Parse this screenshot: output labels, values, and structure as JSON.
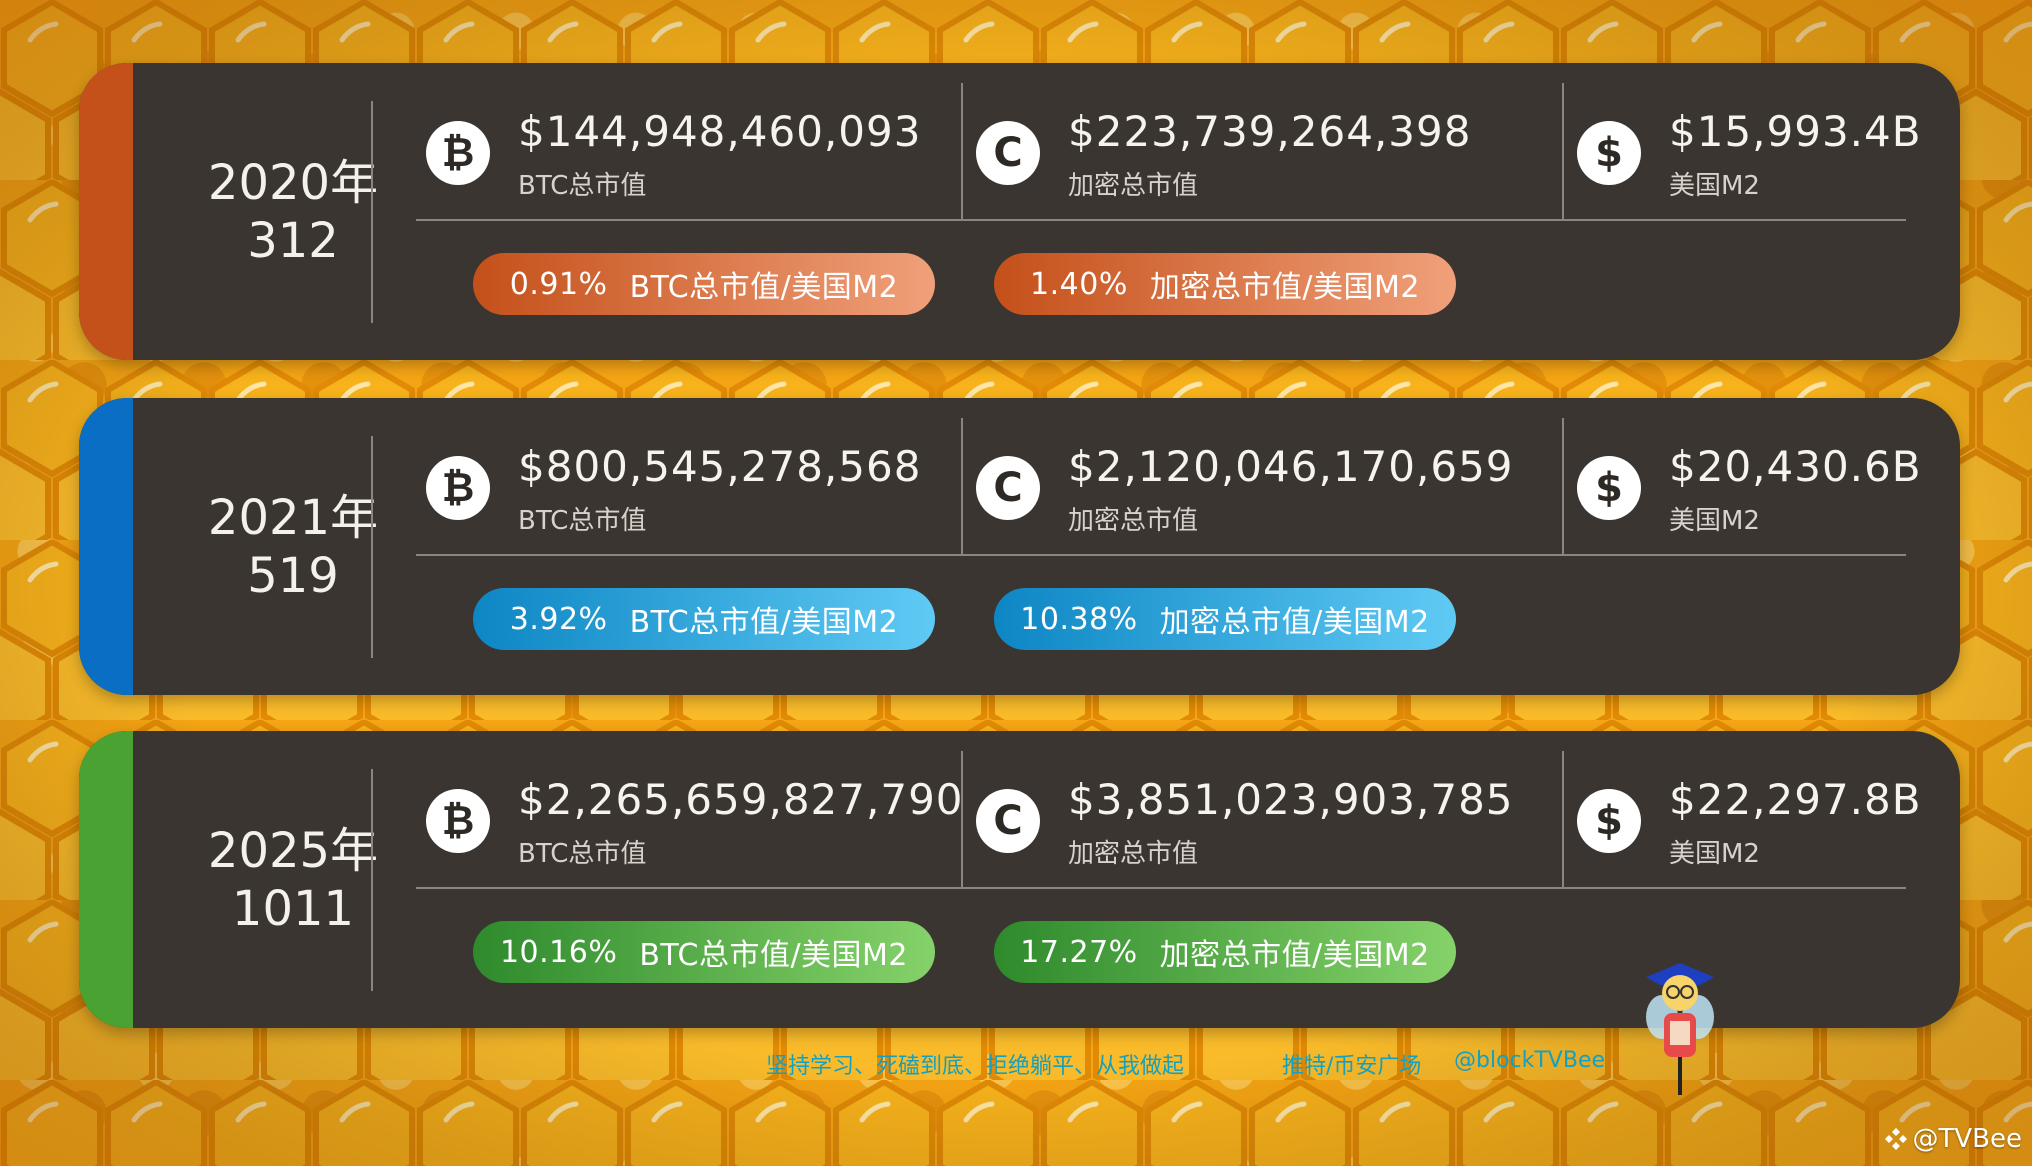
{
  "cards": [
    {
      "year": "2020年",
      "date": "312",
      "accent": "#c4501a",
      "btc_value": "$144,948,460,093",
      "btc_label": "BTC总市值",
      "crypto_value": "$223,739,264,398",
      "crypto_label": "加密总市值",
      "m2_value": "$15,993.4B",
      "m2_label": "美国M2",
      "btc_ratio": "0.91%",
      "btc_ratio_label": "BTC总市值/美国M2",
      "crypto_ratio": "1.40%",
      "crypto_ratio_label": "加密总市值/美国M2",
      "pill_from": "#c4501a",
      "pill_to": "#f0a07a"
    },
    {
      "year": "2021年",
      "date": "519",
      "accent": "#0a6fc4",
      "btc_value": "$800,545,278,568",
      "btc_label": "BTC总市值",
      "crypto_value": "$2,120,046,170,659",
      "crypto_label": "加密总市值",
      "m2_value": "$20,430.6B",
      "m2_label": "美国M2",
      "btc_ratio": "3.92%",
      "btc_ratio_label": "BTC总市值/美国M2",
      "crypto_ratio": "10.38%",
      "crypto_ratio_label": "加密总市值/美国M2",
      "pill_from": "#0d86c4",
      "pill_to": "#5fcaf4"
    },
    {
      "year": "2025年",
      "date": "1011",
      "accent": "#4aa232",
      "btc_value": "$2,265,659,827,790",
      "btc_label": "BTC总市值",
      "crypto_value": "$3,851,023,903,785",
      "crypto_label": "加密总市值",
      "m2_value": "$22,297.8B",
      "m2_label": "美国M2",
      "btc_ratio": "10.16%",
      "btc_ratio_label": "BTC总市值/美国M2",
      "crypto_ratio": "17.27%",
      "crypto_ratio_label": "加密总市值/美国M2",
      "pill_from": "#2e8a2c",
      "pill_to": "#86d26a"
    }
  ],
  "icons": {
    "btc": "₿",
    "crypto": "C",
    "m2": "$"
  },
  "footer": {
    "slogan": "坚持学习、死磕到底、拒绝躺平、从我做起",
    "channel": "推特/币安广场",
    "handle": "@blockTVBee"
  },
  "watermark": "@TVBee"
}
